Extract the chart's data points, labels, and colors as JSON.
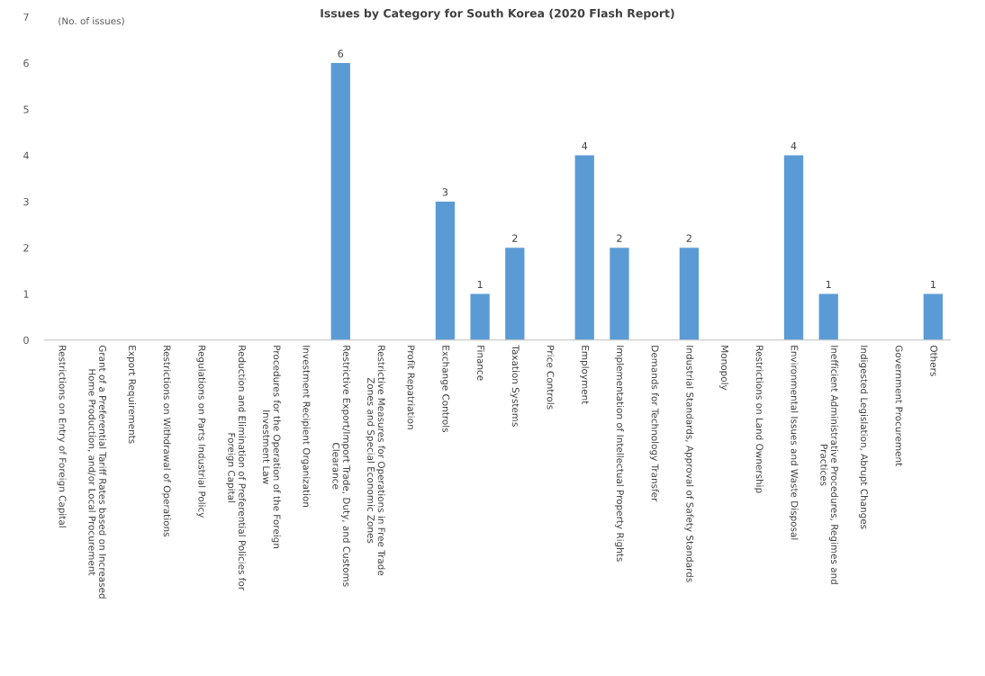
{
  "chart_data": {
    "type": "bar",
    "title": "Issues by Category for South Korea (2020 Flash Report)",
    "ylabel": "(No. of issues)",
    "categories": [
      "Restrictions on Entry of Foreign Capital",
      "Grant of a Preferential Tariff Rates based on Increased\nHome Production, and/or Local Procurement",
      "Export Requirements",
      "Restrictions on Withdrawal of Operations",
      "Regulations on Parts Industrial Policy",
      "Reduction and Elimination of Preferential Policies for\nForeign Capital",
      "Procedures for the Operation of the Foreign\nInvestment Law",
      "Investment Recipient Organization",
      "Restrictive Export/Import Trade, Duty, and Customs\nClearance",
      "Restrictive Measures for Operations in Free Trade\nZones and Special Economic Zones",
      "Profit Repatriation",
      "Exchange Controls",
      "Finance",
      "Taxation Systems",
      "Price Controls",
      "Employment",
      "Implementation of Intellectual Property Rights",
      "Demands for Technology Transfer",
      "Industrial Standards, Approval of Safety Standards",
      "Monopoly",
      "Restrictions on Land Ownership",
      "Environmental Issues and Waste Disposal",
      "Inefficient Administrative Procedures, Regimes and\nPractices",
      "Indigested Legislation, Abrupt Changes",
      "Government Procurement",
      "Others"
    ],
    "values": [
      0,
      0,
      0,
      0,
      0,
      0,
      0,
      0,
      6,
      0,
      0,
      3,
      1,
      2,
      0,
      4,
      2,
      0,
      2,
      0,
      0,
      4,
      1,
      0,
      0,
      1
    ],
    "value_labels": [
      null,
      null,
      null,
      null,
      null,
      null,
      null,
      null,
      "6",
      null,
      null,
      "3",
      "1",
      "2",
      null,
      "4",
      "2",
      null,
      "2",
      null,
      null,
      "4",
      "1",
      null,
      null,
      "1"
    ],
    "color": "#5b9bd5",
    "ylim": [
      0,
      7
    ],
    "yticks": [
      0,
      1,
      2,
      3,
      4,
      5,
      6,
      7
    ],
    "grid": false,
    "legend": false
  }
}
